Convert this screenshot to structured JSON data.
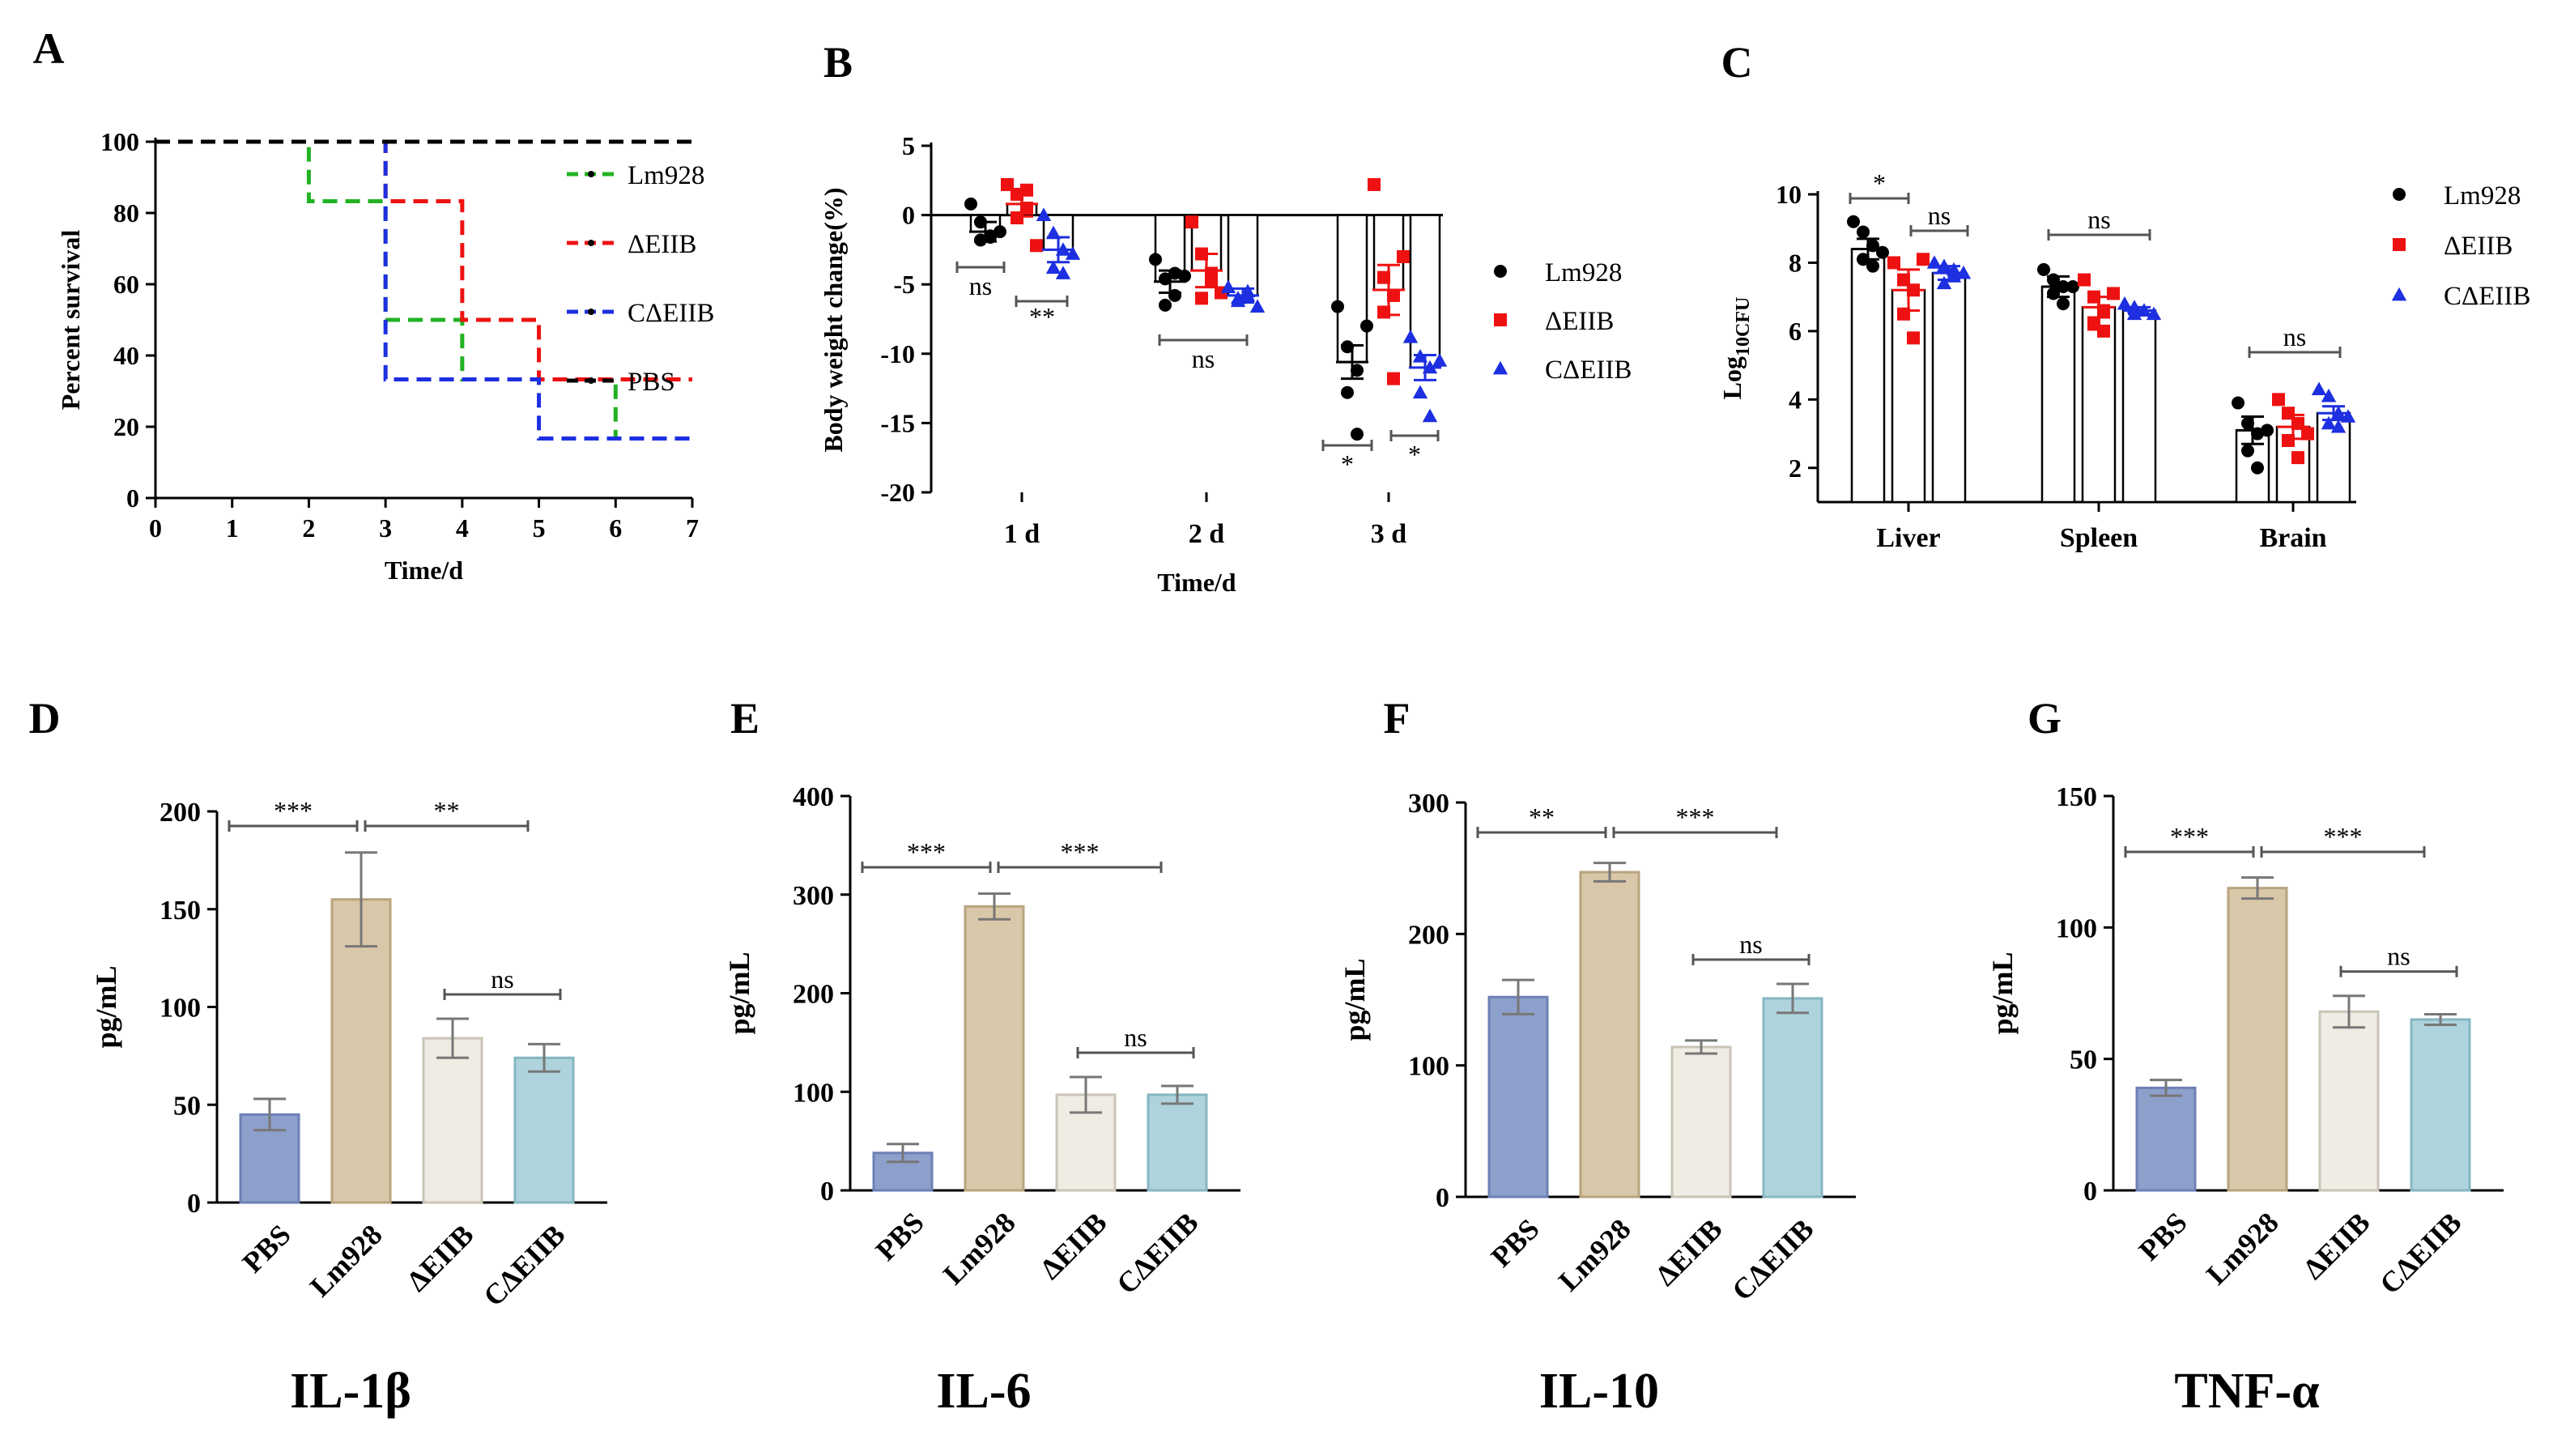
{
  "colors": {
    "green": "#22b222",
    "red": "#ee1111",
    "blue": "#1d2fe0",
    "black": "#000000",
    "bar_pbs": "#8d9fcb",
    "bar_lm928": "#d8c8a9",
    "bar_deiib": "#efece4",
    "bar_cdeiib": "#aed3dc"
  },
  "chart_data": [
    {
      "panel": "A",
      "type": "line",
      "subtype": "step-survival",
      "xlabel": "Time/d",
      "ylabel": "Percent survival",
      "xlim": [
        0,
        7
      ],
      "ylim": [
        0,
        100
      ],
      "xticks": [
        "0",
        "1",
        "2",
        "3",
        "4",
        "5",
        "6",
        "7"
      ],
      "yticks": [
        "0",
        "20",
        "40",
        "60",
        "80",
        "100"
      ],
      "legend_position": "top-right",
      "series": [
        {
          "name": "Lm928",
          "color": "#22b222",
          "x": [
            0,
            2,
            2,
            3,
            3,
            4,
            4,
            6,
            6,
            7
          ],
          "y": [
            100,
            100,
            83.3,
            83.3,
            50,
            50,
            33.3,
            33.3,
            16.7,
            16.7
          ]
        },
        {
          "name": "ΔEIIB",
          "color": "#ee1111",
          "x": [
            0,
            3,
            3,
            4,
            4,
            5,
            5,
            7
          ],
          "y": [
            100,
            100,
            83.3,
            83.3,
            50,
            50,
            33.3,
            33.3
          ]
        },
        {
          "name": "CΔEIIB",
          "color": "#1d2fe0",
          "x": [
            0,
            3,
            3,
            5,
            5,
            7
          ],
          "y": [
            100,
            100,
            33.3,
            33.3,
            16.7,
            16.7
          ]
        },
        {
          "name": "PBS",
          "color": "#000000",
          "x": [
            0,
            7
          ],
          "y": [
            100,
            100
          ]
        }
      ]
    },
    {
      "panel": "B",
      "type": "bar",
      "subtype": "grouped-bar-with-points",
      "xlabel": "Time/d",
      "ylabel": "Body weight change(%)",
      "ylim": [
        -20,
        5
      ],
      "yticks": [
        "5",
        "0",
        "-5",
        "-10",
        "-15",
        "-20"
      ],
      "categories": [
        "1 d",
        "2 d",
        "3 d"
      ],
      "legend_position": "right",
      "series": [
        {
          "name": "Lm928",
          "color": "#000000",
          "marker": "circle",
          "values": [
            -1.2,
            -4.8,
            -10.6
          ],
          "errors": [
            0.7,
            0.8,
            1.2
          ],
          "points": [
            [
              0.8,
              -0.5,
              -1.5,
              -1.8,
              -1.6,
              -1.2
            ],
            [
              -3.2,
              -4.6,
              -5.8,
              -6.5,
              -4.2,
              -4.4
            ],
            [
              -6.6,
              -9.5,
              -11.2,
              -12.8,
              -15.8,
              -8
            ]
          ]
        },
        {
          "name": "ΔEIIB",
          "color": "#ee1111",
          "marker": "square",
          "values": [
            0.8,
            -4.0,
            -5.4
          ],
          "errors": [
            0.9,
            1.2,
            1.8
          ],
          "points": [
            [
              2.2,
              1.5,
              0.5,
              -0.2,
              1.8,
              -2.2
            ],
            [
              -0.5,
              -2.8,
              -4.8,
              -6,
              -4.2,
              -5.6
            ],
            [
              2.2,
              -4.5,
              -5.8,
              -7,
              -11.8,
              -3
            ]
          ]
        },
        {
          "name": "CΔEIIB",
          "color": "#1d2fe0",
          "marker": "triangle",
          "values": [
            -2.5,
            -5.8,
            -11.0
          ],
          "errors": [
            0.9,
            0.5,
            0.9
          ],
          "points": [
            [
              0,
              -1.3,
              -2.5,
              -3.8,
              -4.2,
              -2.8
            ],
            [
              -5.2,
              -6,
              -5.5,
              -6.2,
              -5.8,
              -6.6
            ],
            [
              -8.8,
              -10.2,
              -11,
              -12.8,
              -14.5,
              -10.5
            ]
          ]
        }
      ],
      "annotations": [
        "ns",
        "**",
        "ns",
        "*",
        "*"
      ]
    },
    {
      "panel": "C",
      "type": "bar",
      "subtype": "grouped-bar-with-points",
      "xlabel": "",
      "ylabel_main": "Log",
      "ylabel_sub": "10CFU",
      "ylim": [
        1,
        10
      ],
      "yticks": [
        "10",
        "8",
        "6",
        "4",
        "2"
      ],
      "categories": [
        "Liver",
        "Spleen",
        "Brain"
      ],
      "legend_position": "top-right",
      "series": [
        {
          "name": "Lm928",
          "color": "#000000",
          "marker": "circle",
          "values": [
            8.4,
            7.3,
            3.1
          ],
          "errors": [
            0.3,
            0.3,
            0.4
          ],
          "points": [
            [
              9.2,
              8.9,
              8.5,
              8.1,
              7.9,
              8.3
            ],
            [
              7.8,
              7.5,
              7.3,
              7.1,
              6.8,
              7.3
            ],
            [
              3.9,
              3.3,
              3,
              2.5,
              2,
              3.1
            ]
          ]
        },
        {
          "name": "ΔEIIB",
          "color": "#ee1111",
          "marker": "square",
          "values": [
            7.2,
            6.7,
            3.2
          ],
          "errors": [
            0.6,
            0.3,
            0.35
          ],
          "points": [
            [
              8,
              7.5,
              7.2,
              6.5,
              5.8,
              8.1
            ],
            [
              7.5,
              7,
              6.6,
              6.2,
              6,
              7.1
            ],
            [
              4,
              3.6,
              3.3,
              2.8,
              2.3,
              3
            ]
          ]
        },
        {
          "name": "CΔEIIB",
          "color": "#1d2fe0",
          "marker": "triangle",
          "values": [
            7.7,
            6.6,
            3.6
          ],
          "errors": [
            0.2,
            0.1,
            0.2
          ],
          "points": [
            [
              8,
              7.9,
              7.6,
              7.4,
              7.8,
              7.7
            ],
            [
              6.8,
              6.7,
              6.6,
              6.5,
              6.6,
              6.5
            ],
            [
              4.3,
              4.1,
              3.6,
              3.3,
              3.2,
              3.5
            ]
          ]
        }
      ],
      "annotations": [
        "*",
        "ns",
        "ns",
        "ns"
      ]
    },
    {
      "panel": "D",
      "type": "bar",
      "title": "IL-1β",
      "ylabel": "pg/mL",
      "ylim": [
        0,
        200
      ],
      "yticks": [
        "0",
        "50",
        "100",
        "150",
        "200"
      ],
      "categories": [
        "PBS",
        "Lm928",
        "ΔEIIB",
        "CΔEIIB"
      ],
      "values": [
        45,
        155,
        84,
        74
      ],
      "errors": [
        8,
        24,
        10,
        7
      ],
      "annotations": [
        "***",
        "**",
        "ns"
      ]
    },
    {
      "panel": "E",
      "type": "bar",
      "title": "IL-6",
      "ylabel": "pg/mL",
      "ylim": [
        0,
        400
      ],
      "yticks": [
        "0",
        "100",
        "200",
        "300",
        "400"
      ],
      "categories": [
        "PBS",
        "Lm928",
        "ΔEIIB",
        "CΔEIIB"
      ],
      "values": [
        38,
        288,
        97,
        97
      ],
      "errors": [
        9,
        13,
        18,
        9
      ],
      "annotations": [
        "***",
        "***",
        "ns"
      ]
    },
    {
      "panel": "F",
      "type": "bar",
      "title": "IL-10",
      "ylabel": "pg/mL",
      "ylim": [
        0,
        300
      ],
      "yticks": [
        "0",
        "100",
        "200",
        "300"
      ],
      "categories": [
        "PBS",
        "Lm928",
        "ΔEIIB",
        "CΔEIIB"
      ],
      "values": [
        152,
        247,
        114,
        151
      ],
      "errors": [
        13,
        7,
        5,
        11
      ],
      "annotations": [
        "**",
        "***",
        "ns"
      ]
    },
    {
      "panel": "G",
      "type": "bar",
      "title": "TNF-α",
      "ylabel": "pg/mL",
      "ylim": [
        0,
        150
      ],
      "yticks": [
        "0",
        "50",
        "100",
        "150"
      ],
      "categories": [
        "PBS",
        "Lm928",
        "ΔEIIB",
        "CΔEIIB"
      ],
      "values": [
        39,
        115,
        68,
        65
      ],
      "errors": [
        3,
        4,
        6,
        2
      ],
      "annotations": [
        "***",
        "***",
        "ns"
      ]
    }
  ]
}
